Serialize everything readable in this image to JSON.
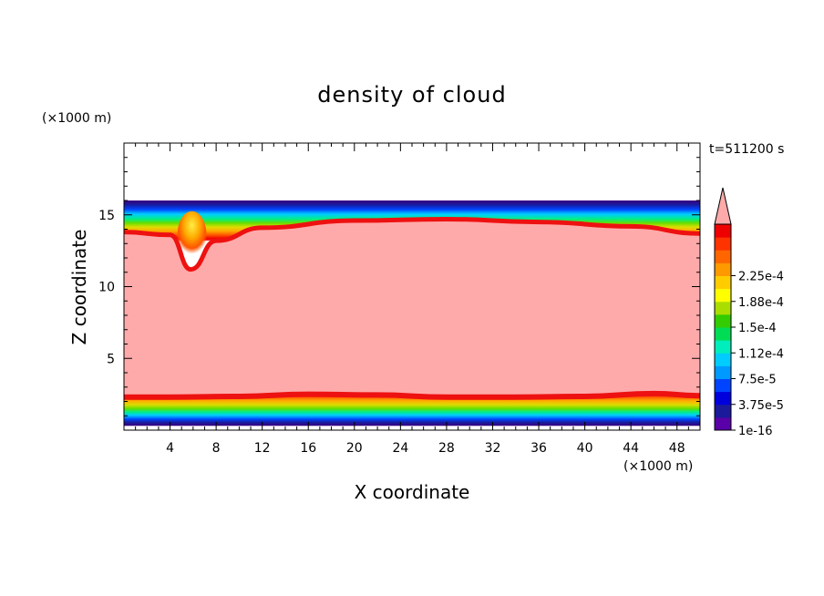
{
  "chart_data": {
    "type": "heatmap",
    "title": "density of cloud",
    "xlabel": "X coordinate",
    "ylabel": "Z coordinate",
    "x_unit": "(×1000 m)",
    "y_unit": "(×1000 m)",
    "time_label": "t=511200 s",
    "xlim": [
      0,
      50
    ],
    "ylim": [
      0,
      20
    ],
    "x_ticks": [
      4,
      8,
      12,
      16,
      20,
      24,
      28,
      32,
      36,
      40,
      44,
      48
    ],
    "y_ticks": [
      5,
      10,
      15
    ],
    "cloud_layer": {
      "base_z": [
        [
          0,
          2.3
        ],
        [
          4,
          2.3
        ],
        [
          10,
          2.35
        ],
        [
          16,
          2.5
        ],
        [
          22,
          2.45
        ],
        [
          28,
          2.3
        ],
        [
          34,
          2.3
        ],
        [
          40,
          2.35
        ],
        [
          46,
          2.55
        ],
        [
          50,
          2.4
        ]
      ],
      "top_z": [
        [
          0,
          13.8
        ],
        [
          4,
          13.6
        ],
        [
          5.8,
          11.2
        ],
        [
          8,
          13.2
        ],
        [
          12,
          14.1
        ],
        [
          20,
          14.6
        ],
        [
          28,
          14.7
        ],
        [
          36,
          14.5
        ],
        [
          44,
          14.2
        ],
        [
          50,
          13.7
        ]
      ],
      "domain_top_z": 16.0,
      "domain_bottom_z": 0.3,
      "over_max_color": "#ffaaaa"
    },
    "colorbar": {
      "levels": [
        "1e-16",
        "3.75e-5",
        "7.5e-5",
        "1.12e-4",
        "1.5e-4",
        "1.88e-4",
        "2.25e-4"
      ],
      "colors": [
        "#5a00a8",
        "#1a1a9a",
        "#0000dd",
        "#0044ff",
        "#0099ff",
        "#00ccff",
        "#00eebb",
        "#00dd55",
        "#33cc00",
        "#aadd00",
        "#ffff00",
        "#ffcc00",
        "#ff9900",
        "#ff6600",
        "#ff3300",
        "#ee0000"
      ],
      "extend": "max"
    }
  }
}
